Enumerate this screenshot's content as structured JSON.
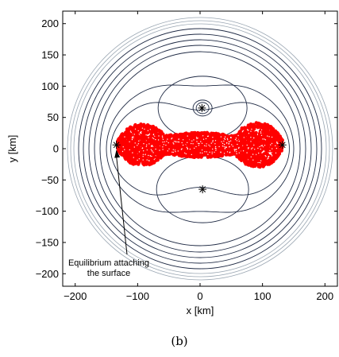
{
  "chart_data": {
    "type": "scatter",
    "xlabel": "x [km]",
    "ylabel": "y [km]",
    "xlim": [
      -220,
      220
    ],
    "ylim": [
      -220,
      220
    ],
    "xticks": [
      -200,
      -100,
      0,
      100,
      200
    ],
    "yticks": [
      -200,
      -150,
      -100,
      -50,
      0,
      50,
      100,
      150,
      200
    ],
    "xtick_labels": [
      "−200",
      "−100",
      "0",
      "100",
      "200"
    ],
    "ytick_labels": [
      "−200",
      "−150",
      "−100",
      "−50",
      "0",
      "50",
      "100",
      "150",
      "200"
    ],
    "grid": false,
    "body_color": "#ff0000",
    "contour_color": "#1f2a44",
    "outer_contour_color": "#9aa6b2",
    "equilibrium_points": [
      {
        "x": -134,
        "y": 6
      },
      {
        "x": 132,
        "y": 6
      },
      {
        "x": 3,
        "y": 65
      },
      {
        "x": 4,
        "y": -65
      }
    ],
    "annotation": {
      "line1": "Equilibrium attaching",
      "line2": "the surface",
      "points_to": {
        "x": -134,
        "y": 6
      }
    },
    "caption": "(b)"
  }
}
